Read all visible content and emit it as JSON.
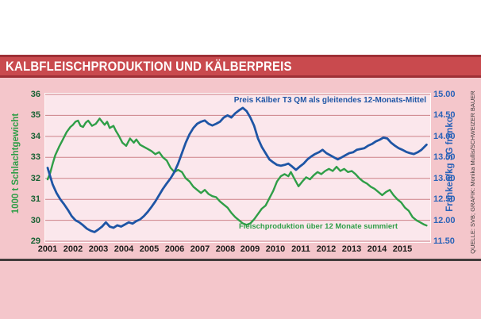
{
  "title_bar": {
    "title": "KALBFLEISCHPRODUKTION UND KÄLBERPREIS"
  },
  "annotations": {
    "price_label": "Preis Kälber T3 QM als gleitendes 12-Monats-Mittel",
    "production_label": "Fleischproduktion über 12 Monate summiert"
  },
  "credit": "QUELLE: SVB; GRAFIK: Monika Mullis/SCHWEIZER BAUER",
  "colors": {
    "title_bar_bg": "#c94a4e",
    "title_bar_border": "#9e3036",
    "page_pink": "#f4c6cb",
    "plot_bg": "#fbe7ec",
    "grid": "#cc8187",
    "production_green": "#2f9e47",
    "price_blue": "#1e55a5",
    "left_tick_green": "#176133",
    "right_tick_blue": "#2a63b8",
    "year_label": "#1d1d1b",
    "bottom_rule": "#423c3c"
  },
  "chart_data": {
    "type": "line",
    "title": "KALBFLEISCHPRODUKTION UND KÄLBERPREIS",
    "grid": true,
    "legend_position": "inline-annotations",
    "x_range": [
      2001,
      2016.06
    ],
    "x_ticks": [
      "2001",
      "2002",
      "2003",
      "2004",
      "2005",
      "2006",
      "2007",
      "2008",
      "2009",
      "2010",
      "2011",
      "2012",
      "2013",
      "2014",
      "2015"
    ],
    "left_axis": {
      "label": "1000 t Schlachtgewicht",
      "min": 29,
      "max": 36,
      "ticks": [
        "36",
        "35",
        "34",
        "33",
        "32",
        "31",
        "30",
        "29"
      ]
    },
    "right_axis": {
      "label": "Franken/kg SG franko",
      "min": 11.5,
      "max": 15,
      "ticks": [
        "15.00",
        "14.50",
        "14.00",
        "13.50",
        "13.00",
        "12.50",
        "12.00",
        "11.50"
      ]
    },
    "series": [
      {
        "name": "Fleischproduktion über 12 Monate summiert",
        "axis": "left",
        "unit": "1000 t Schlachtgewicht",
        "color": "#2f9e47",
        "points": [
          [
            2001.0,
            31.95
          ],
          [
            2001.1,
            32.25
          ],
          [
            2001.2,
            32.7
          ],
          [
            2001.3,
            33.1
          ],
          [
            2001.45,
            33.5
          ],
          [
            2001.6,
            33.85
          ],
          [
            2001.75,
            34.2
          ],
          [
            2001.9,
            34.45
          ],
          [
            2002.0,
            34.55
          ],
          [
            2002.1,
            34.7
          ],
          [
            2002.2,
            34.75
          ],
          [
            2002.3,
            34.5
          ],
          [
            2002.4,
            34.45
          ],
          [
            2002.5,
            34.65
          ],
          [
            2002.6,
            34.75
          ],
          [
            2002.75,
            34.5
          ],
          [
            2002.9,
            34.6
          ],
          [
            2003.05,
            34.85
          ],
          [
            2003.15,
            34.7
          ],
          [
            2003.25,
            34.55
          ],
          [
            2003.35,
            34.7
          ],
          [
            2003.45,
            34.4
          ],
          [
            2003.6,
            34.5
          ],
          [
            2003.7,
            34.25
          ],
          [
            2003.8,
            34.05
          ],
          [
            2003.95,
            33.7
          ],
          [
            2004.1,
            33.55
          ],
          [
            2004.25,
            33.9
          ],
          [
            2004.4,
            33.7
          ],
          [
            2004.5,
            33.85
          ],
          [
            2004.65,
            33.6
          ],
          [
            2004.8,
            33.5
          ],
          [
            2004.95,
            33.4
          ],
          [
            2005.1,
            33.3
          ],
          [
            2005.25,
            33.15
          ],
          [
            2005.4,
            33.25
          ],
          [
            2005.55,
            33.0
          ],
          [
            2005.7,
            32.85
          ],
          [
            2005.85,
            32.5
          ],
          [
            2006.0,
            32.3
          ],
          [
            2006.15,
            32.4
          ],
          [
            2006.3,
            32.3
          ],
          [
            2006.45,
            32.0
          ],
          [
            2006.6,
            31.85
          ],
          [
            2006.75,
            31.6
          ],
          [
            2006.9,
            31.45
          ],
          [
            2007.05,
            31.3
          ],
          [
            2007.2,
            31.45
          ],
          [
            2007.35,
            31.25
          ],
          [
            2007.5,
            31.15
          ],
          [
            2007.65,
            31.1
          ],
          [
            2007.8,
            30.9
          ],
          [
            2007.95,
            30.75
          ],
          [
            2008.1,
            30.6
          ],
          [
            2008.25,
            30.35
          ],
          [
            2008.4,
            30.15
          ],
          [
            2008.55,
            30.0
          ],
          [
            2008.7,
            29.85
          ],
          [
            2008.85,
            29.78
          ],
          [
            2009.0,
            29.85
          ],
          [
            2009.15,
            30.05
          ],
          [
            2009.3,
            30.3
          ],
          [
            2009.45,
            30.55
          ],
          [
            2009.6,
            30.7
          ],
          [
            2009.75,
            31.05
          ],
          [
            2009.9,
            31.4
          ],
          [
            2010.05,
            31.85
          ],
          [
            2010.2,
            32.1
          ],
          [
            2010.35,
            32.2
          ],
          [
            2010.5,
            32.1
          ],
          [
            2010.6,
            32.3
          ],
          [
            2010.75,
            31.95
          ],
          [
            2010.9,
            31.62
          ],
          [
            2011.05,
            31.85
          ],
          [
            2011.2,
            32.05
          ],
          [
            2011.35,
            31.95
          ],
          [
            2011.5,
            32.15
          ],
          [
            2011.65,
            32.3
          ],
          [
            2011.8,
            32.2
          ],
          [
            2011.95,
            32.35
          ],
          [
            2012.1,
            32.45
          ],
          [
            2012.25,
            32.35
          ],
          [
            2012.4,
            32.55
          ],
          [
            2012.55,
            32.35
          ],
          [
            2012.7,
            32.45
          ],
          [
            2012.85,
            32.3
          ],
          [
            2013.0,
            32.35
          ],
          [
            2013.15,
            32.2
          ],
          [
            2013.3,
            32.0
          ],
          [
            2013.45,
            31.85
          ],
          [
            2013.6,
            31.75
          ],
          [
            2013.75,
            31.6
          ],
          [
            2013.9,
            31.5
          ],
          [
            2014.05,
            31.35
          ],
          [
            2014.2,
            31.2
          ],
          [
            2014.35,
            31.35
          ],
          [
            2014.5,
            31.45
          ],
          [
            2014.65,
            31.2
          ],
          [
            2014.8,
            31.0
          ],
          [
            2014.95,
            30.85
          ],
          [
            2015.1,
            30.6
          ],
          [
            2015.25,
            30.45
          ],
          [
            2015.4,
            30.15
          ],
          [
            2015.55,
            30.0
          ],
          [
            2015.7,
            29.9
          ],
          [
            2015.85,
            29.8
          ],
          [
            2015.95,
            29.75
          ]
        ]
      },
      {
        "name": "Preis Kälber T3 QM als gleitendes 12-Monats-Mittel",
        "axis": "right",
        "unit": "Franken/kg SG franko",
        "color": "#1e55a5",
        "points": [
          [
            2001.0,
            13.25
          ],
          [
            2001.1,
            13.05
          ],
          [
            2001.2,
            12.85
          ],
          [
            2001.35,
            12.65
          ],
          [
            2001.5,
            12.5
          ],
          [
            2001.65,
            12.38
          ],
          [
            2001.8,
            12.25
          ],
          [
            2001.95,
            12.1
          ],
          [
            2002.1,
            12.0
          ],
          [
            2002.25,
            11.95
          ],
          [
            2002.4,
            11.88
          ],
          [
            2002.55,
            11.8
          ],
          [
            2002.7,
            11.75
          ],
          [
            2002.85,
            11.72
          ],
          [
            2003.0,
            11.78
          ],
          [
            2003.15,
            11.85
          ],
          [
            2003.3,
            11.95
          ],
          [
            2003.45,
            11.85
          ],
          [
            2003.6,
            11.82
          ],
          [
            2003.75,
            11.88
          ],
          [
            2003.9,
            11.85
          ],
          [
            2004.05,
            11.9
          ],
          [
            2004.2,
            11.95
          ],
          [
            2004.35,
            11.92
          ],
          [
            2004.5,
            11.98
          ],
          [
            2004.65,
            12.02
          ],
          [
            2004.8,
            12.1
          ],
          [
            2004.95,
            12.2
          ],
          [
            2005.1,
            12.32
          ],
          [
            2005.25,
            12.45
          ],
          [
            2005.4,
            12.6
          ],
          [
            2005.55,
            12.75
          ],
          [
            2005.7,
            12.88
          ],
          [
            2005.85,
            13.0
          ],
          [
            2006.0,
            13.15
          ],
          [
            2006.15,
            13.35
          ],
          [
            2006.3,
            13.6
          ],
          [
            2006.45,
            13.85
          ],
          [
            2006.6,
            14.05
          ],
          [
            2006.75,
            14.2
          ],
          [
            2006.9,
            14.3
          ],
          [
            2007.05,
            14.35
          ],
          [
            2007.2,
            14.38
          ],
          [
            2007.35,
            14.3
          ],
          [
            2007.5,
            14.26
          ],
          [
            2007.65,
            14.3
          ],
          [
            2007.8,
            14.35
          ],
          [
            2007.95,
            14.45
          ],
          [
            2008.1,
            14.5
          ],
          [
            2008.25,
            14.45
          ],
          [
            2008.4,
            14.55
          ],
          [
            2008.55,
            14.62
          ],
          [
            2008.7,
            14.68
          ],
          [
            2008.85,
            14.6
          ],
          [
            2009.0,
            14.45
          ],
          [
            2009.15,
            14.25
          ],
          [
            2009.3,
            13.95
          ],
          [
            2009.45,
            13.75
          ],
          [
            2009.6,
            13.6
          ],
          [
            2009.75,
            13.45
          ],
          [
            2009.9,
            13.38
          ],
          [
            2010.05,
            13.32
          ],
          [
            2010.2,
            13.3
          ],
          [
            2010.35,
            13.32
          ],
          [
            2010.5,
            13.35
          ],
          [
            2010.65,
            13.28
          ],
          [
            2010.8,
            13.2
          ],
          [
            2010.95,
            13.28
          ],
          [
            2011.1,
            13.35
          ],
          [
            2011.25,
            13.45
          ],
          [
            2011.4,
            13.52
          ],
          [
            2011.55,
            13.58
          ],
          [
            2011.7,
            13.62
          ],
          [
            2011.85,
            13.68
          ],
          [
            2012.0,
            13.6
          ],
          [
            2012.15,
            13.55
          ],
          [
            2012.3,
            13.5
          ],
          [
            2012.45,
            13.45
          ],
          [
            2012.6,
            13.5
          ],
          [
            2012.75,
            13.55
          ],
          [
            2012.9,
            13.6
          ],
          [
            2013.05,
            13.62
          ],
          [
            2013.2,
            13.68
          ],
          [
            2013.35,
            13.7
          ],
          [
            2013.5,
            13.72
          ],
          [
            2013.65,
            13.78
          ],
          [
            2013.8,
            13.82
          ],
          [
            2013.95,
            13.88
          ],
          [
            2014.1,
            13.92
          ],
          [
            2014.25,
            13.97
          ],
          [
            2014.4,
            13.95
          ],
          [
            2014.55,
            13.85
          ],
          [
            2014.7,
            13.78
          ],
          [
            2014.85,
            13.72
          ],
          [
            2015.0,
            13.68
          ],
          [
            2015.15,
            13.63
          ],
          [
            2015.3,
            13.6
          ],
          [
            2015.45,
            13.58
          ],
          [
            2015.6,
            13.62
          ],
          [
            2015.75,
            13.68
          ],
          [
            2015.95,
            13.8
          ]
        ]
      }
    ]
  }
}
